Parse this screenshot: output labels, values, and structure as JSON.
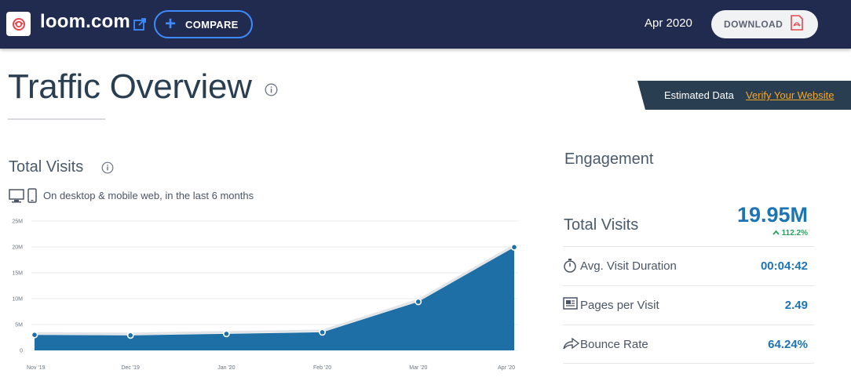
{
  "header": {
    "domain": "loom.com",
    "compare_label": "COMPARE",
    "date": "Apr 2020",
    "download_label": "DOWNLOAD",
    "favicon_color": "#e5484d",
    "background": "#212b4f",
    "compare_accent": "#3e8bff"
  },
  "page": {
    "title": "Traffic Overview",
    "estimated_text": "Estimated Data",
    "verify_link": "Verify Your Website"
  },
  "total_visits": {
    "title": "Total Visits",
    "subtitle": "On desktop & mobile web, in the last 6 months"
  },
  "chart_data": {
    "type": "area",
    "x": [
      "Nov '19",
      "Dec '19",
      "Jan '20",
      "Feb '20",
      "Mar '20",
      "Apr '20"
    ],
    "values": [
      3.0,
      2.9,
      3.2,
      3.5,
      9.4,
      19.95
    ],
    "y_ticks": [
      "0",
      "5M",
      "10M",
      "15M",
      "20M",
      "25M"
    ],
    "ylim": [
      0,
      25
    ],
    "grid": true,
    "fill_color": "#1d6fa5",
    "line_color": "#e2e4e7"
  },
  "engagement": {
    "title": "Engagement",
    "total_visits_label": "Total Visits",
    "total_visits_value": "19.95M",
    "total_visits_change": "112.2%",
    "rows": [
      {
        "icon": "stopwatch-icon",
        "label": "Avg. Visit Duration",
        "value": "00:04:42"
      },
      {
        "icon": "pages-icon",
        "label": "Pages per Visit",
        "value": "2.49"
      },
      {
        "icon": "bounce-arrow-icon",
        "label": "Bounce Rate",
        "value": "64.24%"
      }
    ]
  }
}
